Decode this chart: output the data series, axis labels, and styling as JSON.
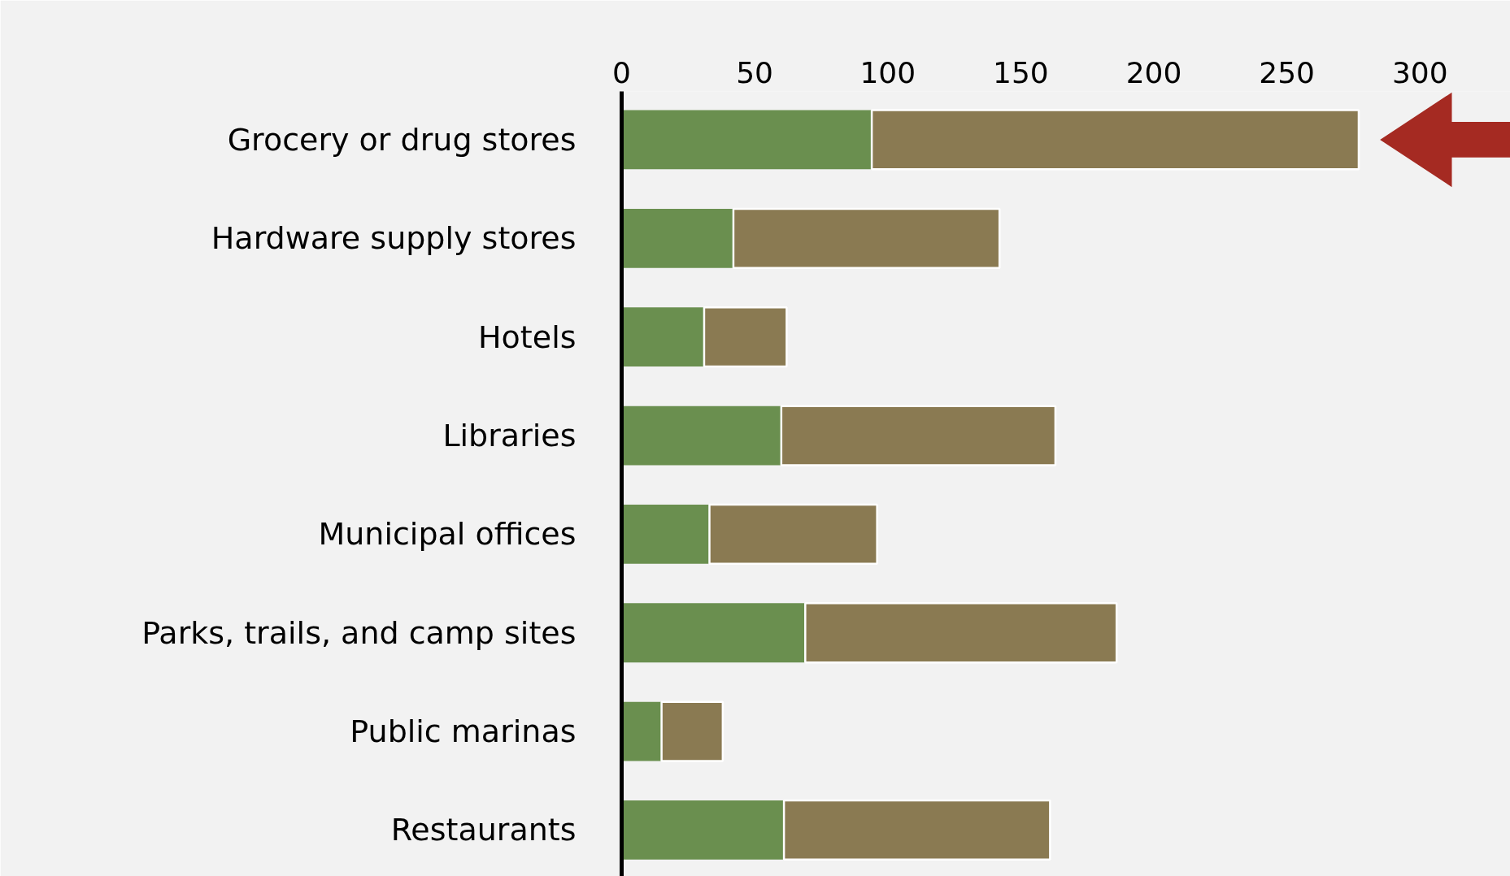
{
  "chart_data": {
    "type": "bar",
    "orientation": "horizontal",
    "stacked": true,
    "categories": [
      "Grocery or drug stores",
      "Hardware supply stores",
      "Hotels",
      "Libraries",
      "Municipal offices",
      "Parks, trails, and camp sites",
      "Public marinas",
      "Restaurants"
    ],
    "series": [
      {
        "color": "#6a8f4f",
        "values": [
          94,
          42,
          31,
          60,
          33,
          69,
          15,
          61
        ]
      },
      {
        "color": "#8a7a52",
        "values": [
          183,
          100,
          31,
          103,
          63,
          117,
          23,
          100
        ]
      }
    ],
    "xlim": [
      0,
      334
    ],
    "xticks": [
      0,
      50,
      100,
      150,
      200,
      250,
      300
    ]
  }
}
